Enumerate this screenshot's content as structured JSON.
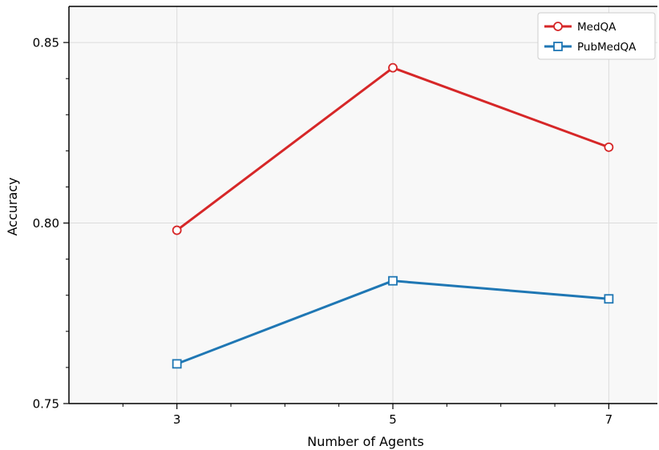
{
  "chart_data": {
    "type": "line",
    "title": "",
    "xlabel": "Number of Agents",
    "ylabel": "Accuracy",
    "x": [
      3,
      5,
      7
    ],
    "x_tick_labels": [
      "3",
      "5",
      "7"
    ],
    "y_tick_labels": [
      "0.75",
      "0.80",
      "0.85"
    ],
    "y_ticks": [
      0.75,
      0.8,
      0.85
    ],
    "xlim": [
      2.0,
      7.45
    ],
    "ylim": [
      0.75,
      0.86
    ],
    "grid": true,
    "legend_position": "top-right",
    "series": [
      {
        "name": "MedQA",
        "values": [
          0.798,
          0.843,
          0.821
        ],
        "color": "#d62728",
        "marker": "circle"
      },
      {
        "name": "PubMedQA",
        "values": [
          0.761,
          0.784,
          0.779
        ],
        "color": "#1f77b4",
        "marker": "square"
      }
    ]
  }
}
